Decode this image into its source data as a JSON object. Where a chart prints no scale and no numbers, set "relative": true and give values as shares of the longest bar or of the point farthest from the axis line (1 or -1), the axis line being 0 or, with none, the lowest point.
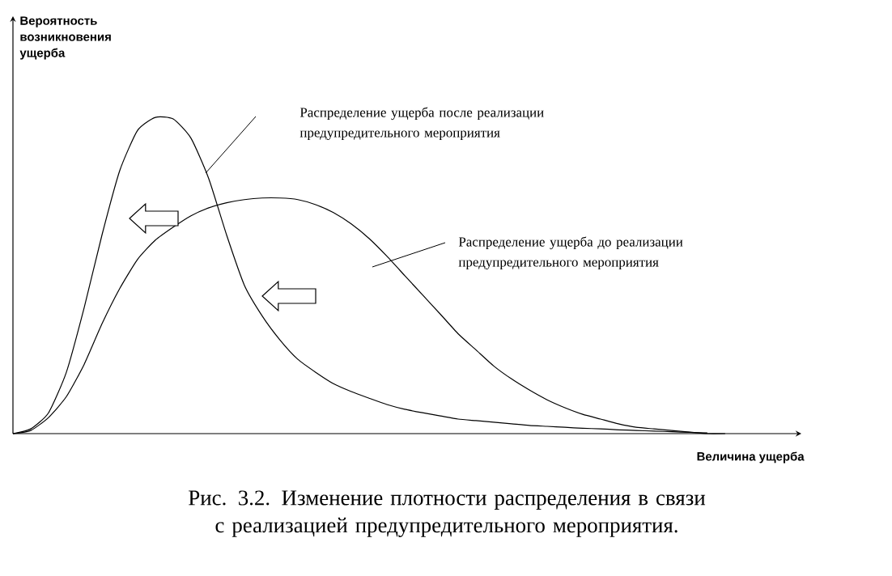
{
  "chart_data": {
    "type": "line",
    "relative": true,
    "annotations": [
      "Распределение ущерба после реализации предупредительного мероприятия",
      "Распределение ущерба до реализации предупредительного мероприятия"
    ],
    "title": "Рис. 3.2. Изменение плотности распределения в связи с реализацией предупредительного мероприятия.",
    "ylabel": "Вероятность возникновения ущерба",
    "xlabel": "Величина ущерба",
    "categories": [
      null,
      null,
      null,
      null,
      null,
      null,
      null,
      null,
      null,
      null,
      null,
      null,
      null,
      null,
      null,
      null,
      null,
      null,
      null,
      null,
      null,
      null,
      null,
      null,
      null,
      null,
      null,
      null,
      null,
      null,
      null,
      null,
      null,
      null,
      null,
      null,
      null,
      null,
      null,
      null,
      null
    ],
    "series": [
      {
        "color": "#000000",
        "values": [
          0,
          0.015,
          0.066,
          0.194,
          0.398,
          0.628,
          0.832,
          0.959,
          1.0,
          0.995,
          0.934,
          0.806,
          0.628,
          0.469,
          0.372,
          0.296,
          0.235,
          0.194,
          0.158,
          0.133,
          0.112,
          0.092,
          0.077,
          0.066,
          0.056,
          0.046,
          0.041,
          0.036,
          0.031,
          0.026,
          0.023,
          0.02,
          0.017,
          0.015,
          0.012,
          0.01,
          0.008,
          0.006,
          0.004,
          0.002,
          null
        ]
      },
      {
        "color": "#000000",
        "values": [
          0,
          0.01,
          0.051,
          0.117,
          0.219,
          0.347,
          0.459,
          0.551,
          0.612,
          0.653,
          0.689,
          0.714,
          0.73,
          0.74,
          0.745,
          0.745,
          0.74,
          0.724,
          0.699,
          0.663,
          0.617,
          0.561,
          0.5,
          0.439,
          0.378,
          0.316,
          0.265,
          0.214,
          0.173,
          0.138,
          0.107,
          0.082,
          0.061,
          0.046,
          0.031,
          0.02,
          0.015,
          0.01,
          0.005,
          0,
          0
        ]
      }
    ]
  }
}
